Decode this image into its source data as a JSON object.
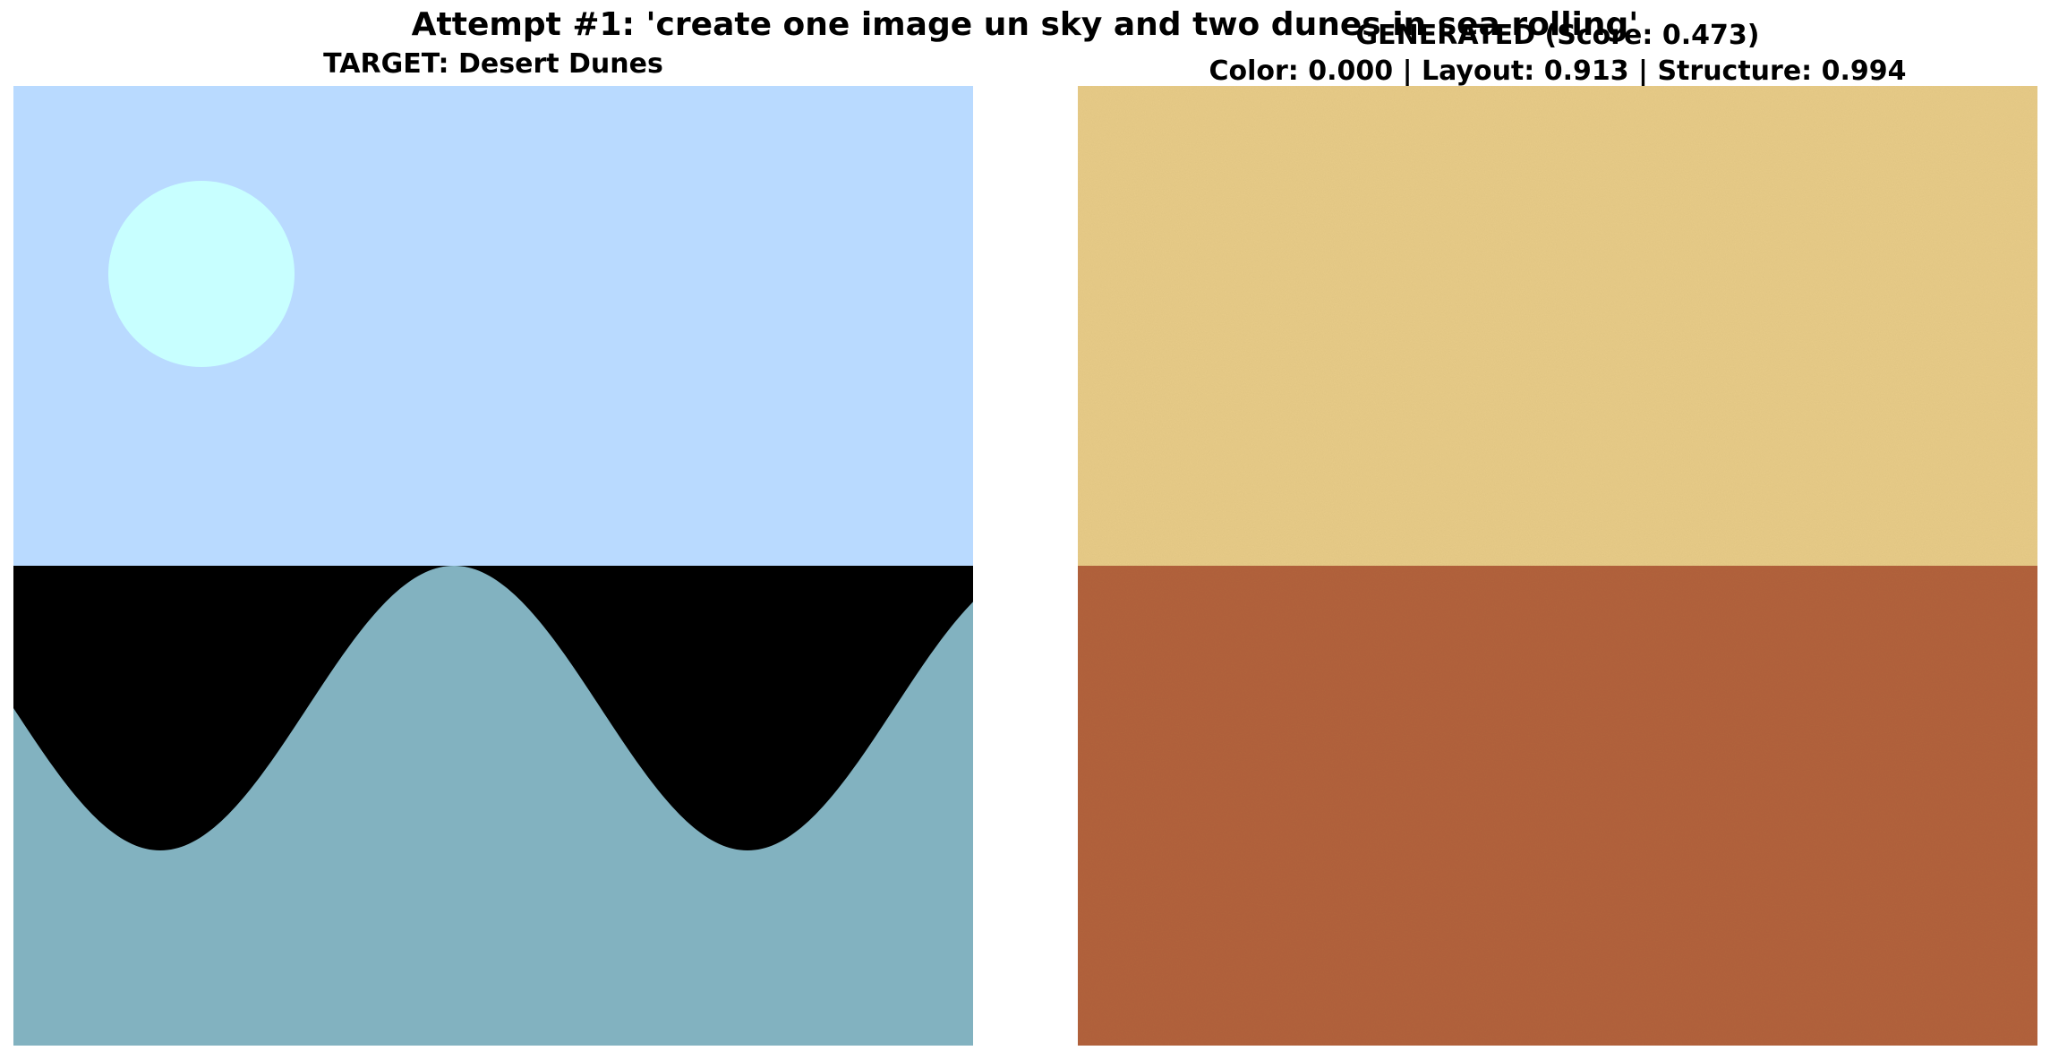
{
  "figure": {
    "suptitle": "Attempt #1: 'create one image un sky and two dunes in sea rolling'"
  },
  "target": {
    "title": "TARGET: Desert Dunes",
    "colors": {
      "sky": "#b9daff",
      "sun": "#c8ffff",
      "dark_band": "#000000",
      "sea": "#82b2c0"
    }
  },
  "generated": {
    "title_line1": "GENERATED (Score: 0.473)",
    "title_line2": "Color: 0.000 | Layout: 0.913 | Structure: 0.994",
    "colors": {
      "upper": "#e8cc88",
      "lower": "#b3633c"
    }
  }
}
